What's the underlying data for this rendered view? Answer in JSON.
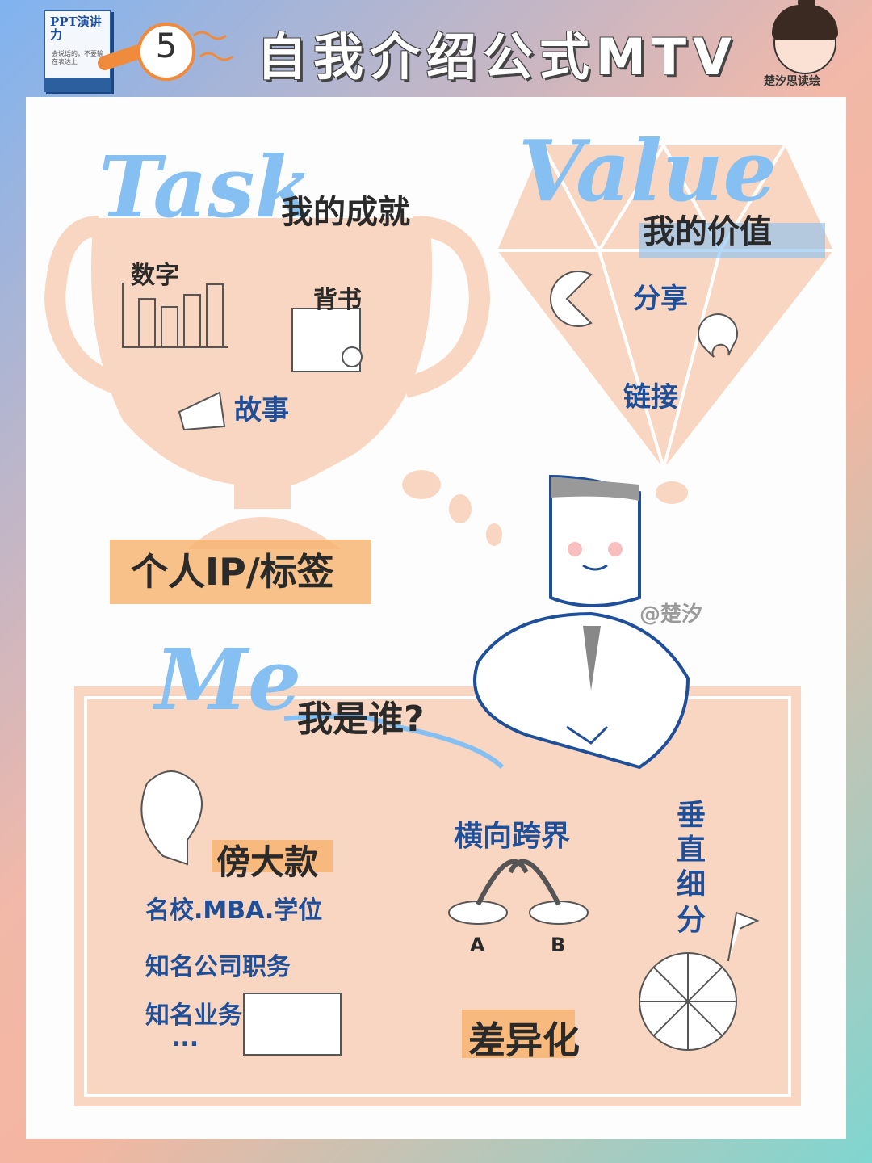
{
  "header": {
    "book_title": "PPT演讲力",
    "book_subtitle": "会说话的，不要输在表达上",
    "step_number": "5",
    "title": "自我介绍公式MTV",
    "author": "楚汐思读绘"
  },
  "task": {
    "script_label": "Task",
    "heading": "我的成就",
    "items": [
      "数字",
      "背书",
      "故事"
    ],
    "footer": "个人IP/标签"
  },
  "value": {
    "script_label": "Value",
    "heading": "我的价值",
    "items": [
      "分享",
      "链接"
    ]
  },
  "watermark": "@楚汐",
  "me": {
    "script_label": "Me",
    "question": "我是谁?",
    "big_names": {
      "heading": "傍大款",
      "lines": [
        "名校.MBA.学位",
        "知名公司职务",
        "知名业务",
        "..."
      ]
    },
    "cross": {
      "heading": "横向跨界",
      "label_a": "A",
      "label_b": "B"
    },
    "vertical": {
      "heading": "垂直细分"
    },
    "differentiation": "差异化"
  },
  "colors": {
    "peach": "#f9d6c1",
    "orange_highlight": "#f6b26b",
    "light_blue": "#86bff2",
    "dark_blue": "#1f4f99"
  }
}
